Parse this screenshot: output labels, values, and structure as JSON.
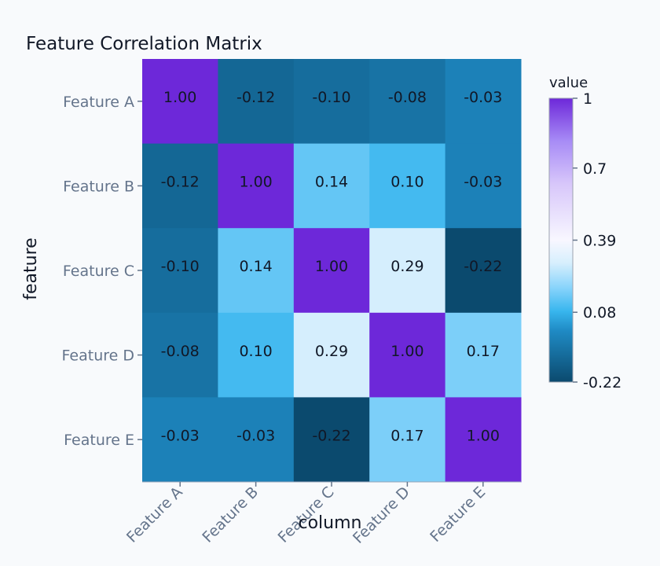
{
  "chart_data": {
    "type": "heatmap",
    "title": "Feature Correlation Matrix",
    "xlabel": "column",
    "ylabel": "feature",
    "x_categories": [
      "Feature A",
      "Feature B",
      "Feature C",
      "Feature D",
      "Feature E"
    ],
    "y_categories": [
      "Feature A",
      "Feature B",
      "Feature C",
      "Feature D",
      "Feature E"
    ],
    "values": [
      [
        1.0,
        -0.12,
        -0.1,
        -0.08,
        -0.03
      ],
      [
        -0.12,
        1.0,
        0.14,
        0.1,
        -0.03
      ],
      [
        -0.1,
        0.14,
        1.0,
        0.29,
        -0.22
      ],
      [
        -0.08,
        0.1,
        0.29,
        1.0,
        0.17
      ],
      [
        -0.03,
        -0.03,
        -0.22,
        0.17,
        1.0
      ]
    ],
    "cell_labels": [
      [
        "1.00",
        "-0.12",
        "-0.10",
        "-0.08",
        "-0.03"
      ],
      [
        "-0.12",
        "1.00",
        "0.14",
        "0.10",
        "-0.03"
      ],
      [
        "-0.10",
        "0.14",
        "1.00",
        "0.29",
        "-0.22"
      ],
      [
        "-0.08",
        "0.10",
        "0.29",
        "1.00",
        "0.17"
      ],
      [
        "-0.03",
        "-0.03",
        "-0.22",
        "0.17",
        "1.00"
      ]
    ],
    "colorbar": {
      "title": "value",
      "range": [
        -0.22,
        1
      ],
      "tick_values": [
        1,
        0.7,
        0.39,
        0.08,
        -0.22
      ],
      "tick_labels": [
        "1",
        "0.7",
        "0.39",
        "0.08",
        "-0.22"
      ],
      "colorscale": [
        [
          0.0,
          "#0b4a6e"
        ],
        [
          0.18,
          "#1f8ac4"
        ],
        [
          0.25,
          "#38b6ee"
        ],
        [
          0.33,
          "#86d3fb"
        ],
        [
          0.42,
          "#d7effd"
        ],
        [
          0.5,
          "#f8f7ff"
        ],
        [
          0.7,
          "#d7c6fa"
        ],
        [
          0.85,
          "#a78bf6"
        ],
        [
          1.0,
          "#6d28d9"
        ]
      ]
    },
    "colors": {
      "background": "#f8fafc",
      "tick_text": "#64748b",
      "title_text": "#111827",
      "cell_text": "#111827"
    }
  }
}
